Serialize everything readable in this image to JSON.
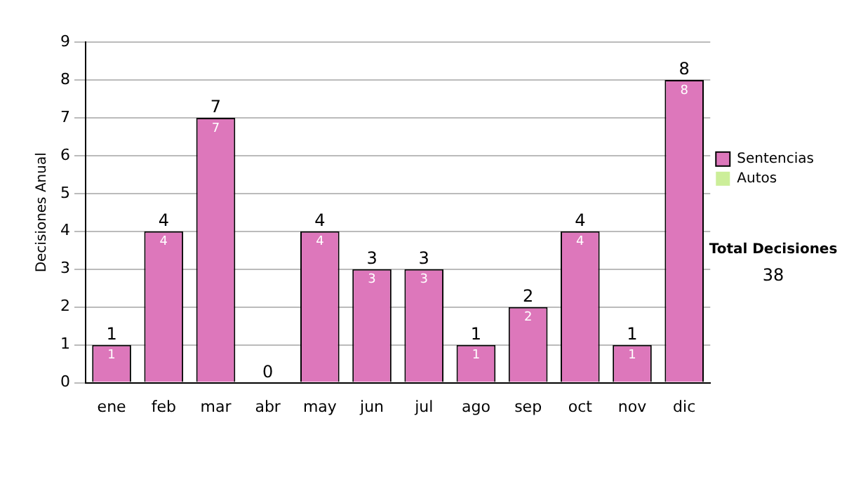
{
  "chart_data": {
    "type": "bar",
    "stacked": true,
    "ylabel": "Decisiones Anual",
    "categories": [
      "ene",
      "feb",
      "mar",
      "abr",
      "may",
      "jun",
      "jul",
      "ago",
      "sep",
      "oct",
      "nov",
      "dic"
    ],
    "series": [
      {
        "name": "Sentencias",
        "color": "#dd77bb",
        "values": [
          1,
          4,
          7,
          0,
          4,
          3,
          3,
          1,
          2,
          4,
          1,
          8
        ],
        "value_labels": [
          "1",
          "4",
          "7",
          null,
          "4",
          "3",
          "3",
          "1",
          "2",
          "4",
          "1",
          "8"
        ]
      },
      {
        "name": "Autos",
        "color": "#ccee99",
        "values": [
          0,
          0,
          0,
          0,
          0,
          0,
          0,
          0,
          0,
          0,
          0,
          0
        ]
      }
    ],
    "totals": [
      "1",
      "4",
      "7",
      "0",
      "4",
      "3",
      "3",
      "1",
      "2",
      "4",
      "1",
      "8"
    ],
    "ylim": [
      0,
      9
    ],
    "yticks": [
      0,
      1,
      2,
      3,
      4,
      5,
      6,
      7,
      8,
      9
    ],
    "grid": "y",
    "legend": "right",
    "annotations": [
      "Total Decisiones",
      "38"
    ]
  }
}
